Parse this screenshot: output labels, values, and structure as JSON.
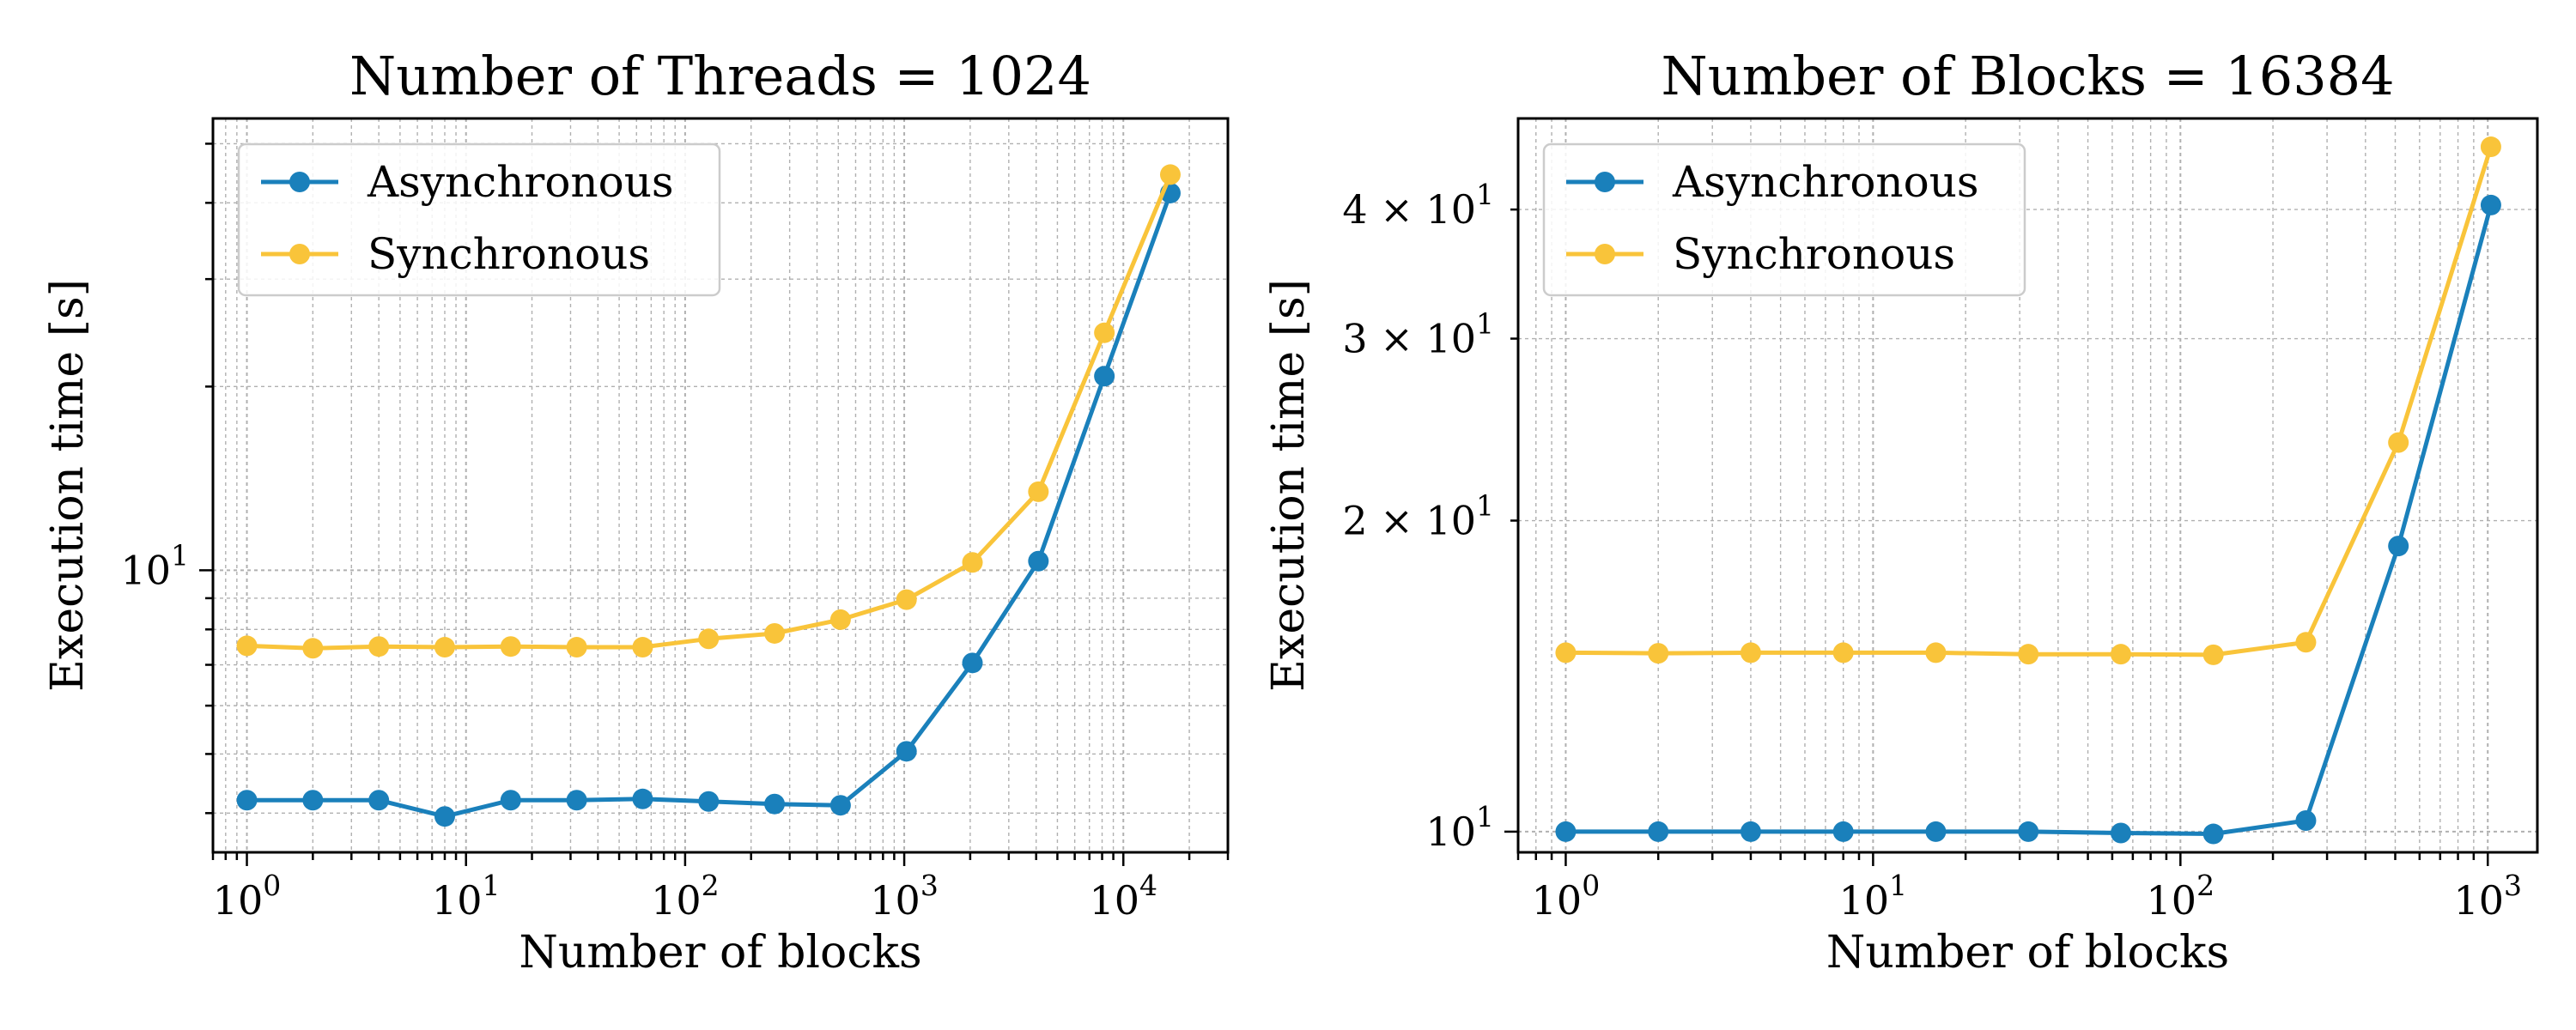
{
  "colors": {
    "asynchronous": "#1a80bb",
    "synchronous": "#f9c43a",
    "grid": "#b0b0b0",
    "axes": "#000000"
  },
  "chart_data": [
    {
      "type": "line",
      "title": "Number of Threads = 1024",
      "xlabel": "Number of blocks",
      "ylabel": "Execution time [s]",
      "xscale": "log",
      "yscale": "log",
      "xlim": [
        0.7,
        30000
      ],
      "ylim": [
        3.45,
        55
      ],
      "grid": true,
      "legend": "top-left",
      "x": [
        1,
        2,
        4,
        8,
        16,
        32,
        64,
        128,
        256,
        512,
        1024,
        2048,
        4096,
        8192,
        16384
      ],
      "x_ticks": [
        {
          "base": "10",
          "exp": "0",
          "value": 1
        },
        {
          "base": "10",
          "exp": "1",
          "value": 10
        },
        {
          "base": "10",
          "exp": "2",
          "value": 100
        },
        {
          "base": "10",
          "exp": "3",
          "value": 1000
        },
        {
          "base": "10",
          "exp": "4",
          "value": 10000
        }
      ],
      "y_ticks": [
        {
          "base": "10",
          "exp": "1",
          "value": 10
        }
      ],
      "series": [
        {
          "name": "Asynchronous",
          "color": "#1a80bb",
          "values": [
            4.2,
            4.2,
            4.2,
            3.95,
            4.2,
            4.2,
            4.22,
            4.18,
            4.14,
            4.12,
            5.05,
            7.05,
            10.35,
            20.8,
            41.5
          ]
        },
        {
          "name": "Synchronous",
          "color": "#f9c43a",
          "values": [
            7.52,
            7.45,
            7.5,
            7.48,
            7.5,
            7.48,
            7.48,
            7.72,
            7.88,
            8.3,
            8.95,
            10.3,
            13.45,
            24.5,
            44.5
          ]
        }
      ]
    },
    {
      "type": "line",
      "title": "Number of Blocks = 16384",
      "xlabel": "Number of blocks",
      "ylabel": "Execution time [s]",
      "xscale": "log",
      "yscale": "log",
      "xlim": [
        0.7,
        1450
      ],
      "ylim": [
        9.55,
        49
      ],
      "grid": true,
      "legend": "top-left",
      "x": [
        1,
        2,
        4,
        8,
        16,
        32,
        64,
        128,
        256,
        512,
        1024
      ],
      "x_ticks": [
        {
          "base": "10",
          "exp": "0",
          "value": 1
        },
        {
          "base": "10",
          "exp": "1",
          "value": 10
        },
        {
          "base": "10",
          "exp": "2",
          "value": 100
        },
        {
          "base": "10",
          "exp": "3",
          "value": 1000
        }
      ],
      "y_ticks": [
        {
          "base": "10",
          "exp": "1",
          "value": 10,
          "coef": ""
        },
        {
          "base": "10",
          "exp": "1",
          "value": 20,
          "coef": "2 × "
        },
        {
          "base": "10",
          "exp": "1",
          "value": 30,
          "coef": "3 × "
        },
        {
          "base": "10",
          "exp": "1",
          "value": 40,
          "coef": "4 × "
        }
      ],
      "series": [
        {
          "name": "Asynchronous",
          "color": "#1a80bb",
          "values": [
            10.0,
            10.0,
            10.0,
            10.0,
            10.0,
            10.0,
            9.97,
            9.95,
            10.25,
            18.9,
            40.4
          ]
        },
        {
          "name": "Synchronous",
          "color": "#f9c43a",
          "values": [
            14.9,
            14.88,
            14.9,
            14.9,
            14.9,
            14.85,
            14.85,
            14.83,
            15.25,
            23.8,
            46.0
          ]
        }
      ]
    }
  ]
}
